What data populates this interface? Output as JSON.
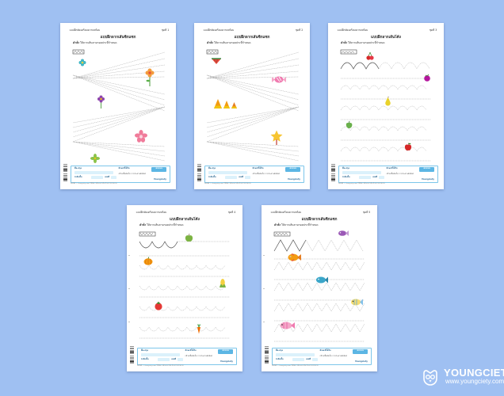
{
  "worksheets": [
    {
      "header_left": "แบบฝึกหัดเตรียมความพร้อม",
      "header_right": "ชุดที่ 1",
      "title": "แบบฝึกลากเส้นซิกแซก",
      "instruction_label": "คำสั่ง",
      "instruction_text": "ให้ลากเส้นตามรอยประที่กำหนด",
      "pattern": "zigzag",
      "stickers": [
        "teal-flower-icon",
        "orange-flower-icon",
        "purple-flower-icon",
        "pink-flower-icon",
        "green-flower-icon"
      ]
    },
    {
      "header_left": "แบบฝึกหัดเตรียมความพร้อม",
      "header_right": "ชุดที่ 2",
      "title": "แบบฝึกลากเส้นซิกแซก",
      "instruction_label": "คำสั่ง",
      "instruction_text": "ให้ลากเส้นตามรอยประที่กำหนด",
      "pattern": "zigzag",
      "stickers": [
        "watermelon-icon",
        "candy-icon",
        "candy-corn-icon",
        "star-wand-icon"
      ]
    },
    {
      "header_left": "แบบฝึกหัดเตรียมความพร้อม",
      "header_right": "ชุดที่ 3",
      "title": "แบบฝึกลากเส้นโค้ง",
      "instruction_label": "คำสั่ง",
      "instruction_text": "ให้ลากเส้นตามรอยประที่กำหนด",
      "pattern": "waves",
      "stickers": [
        "cherry-icon",
        "berry-icon",
        "pear-icon",
        "green-pepper-icon",
        "apple-icon"
      ]
    },
    {
      "header_left": "แบบฝึกหัดเตรียมความพร้อม",
      "header_right": "ชุดที่ 4",
      "title": "แบบฝึกลากเส้นโค้ง",
      "instruction_label": "คำสั่ง",
      "instruction_text": "ให้ลากเส้นตามรอยประที่กำหนด",
      "pattern": "waves",
      "stickers": [
        "green-apple-icon",
        "pumpkin-icon",
        "corn-icon",
        "tomato-icon",
        "carrot-icon"
      ]
    },
    {
      "header_left": "แบบฝึกหัดเตรียมความพร้อม",
      "header_right": "ชุดที่ 5",
      "title": "แบบฝึกลากเส้นซิกแซก",
      "instruction_label": "คำสั่ง",
      "instruction_text": "ให้ลากเส้นตามรอยประที่กำหนด",
      "pattern": "fish",
      "stickers": [
        "purple-fish-icon",
        "orange-fish-icon",
        "blue-fish-icon",
        "yellow-fish-icon",
        "pink-fish-icon"
      ]
    }
  ],
  "footer": {
    "name_label": "ชื่อ-สกุล",
    "class_label": "ระดับชั้น",
    "no_label": "เลขที่",
    "skill_label": "ทักษะที่ได้รับ",
    "skill_text": "กล้ามเนื้อมัดเล็ก การประสานสัมพันธ์",
    "score_label": "คะแนน",
    "brand": "Youngciety"
  },
  "fine_print": "ลิขสิทธิ์ © Youngciety.com ใช้เพื่อการศึกษาเท่านั้น ห้ามนำไปจำหน่าย",
  "brand": {
    "name": "YOUNGCIETY",
    "url": "www.youngciety.com"
  },
  "colors": {
    "background": "#9fc0f2",
    "footer_accent": "#5cb6e4"
  }
}
